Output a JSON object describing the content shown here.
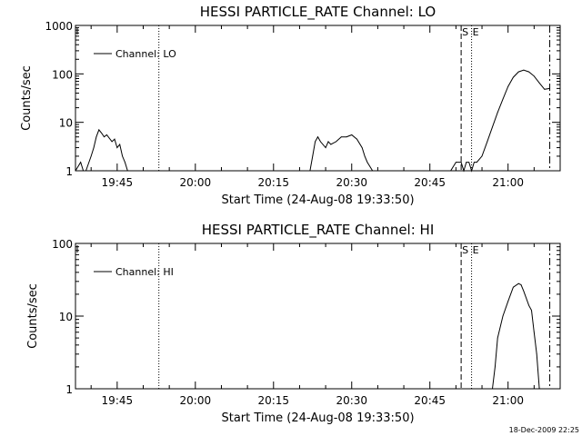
{
  "footer_timestamp": "18-Dec-2009 22:25",
  "chart_data": [
    {
      "type": "line",
      "title": "HESSI PARTICLE_RATE Channel: LO",
      "xlabel": "Start Time (24-Aug-08 19:33:50)",
      "ylabel": "Counts/sec",
      "yscale": "log",
      "ylim": [
        1,
        1000
      ],
      "xlim": [
        "19:37",
        "21:10"
      ],
      "x_ticks": [
        "19:45",
        "20:00",
        "20:15",
        "20:30",
        "20:45",
        "21:00"
      ],
      "y_ticks": [
        "1",
        "10",
        "100",
        "1000"
      ],
      "legend": {
        "label": "Channel: LO",
        "placement": "top-left"
      },
      "markers": [
        {
          "time": "19:53",
          "style": "dotted",
          "label": ""
        },
        {
          "time": "20:51",
          "style": "dashed",
          "label": "S"
        },
        {
          "time": "20:53",
          "style": "dotted",
          "label": "E"
        },
        {
          "time": "21:08",
          "style": "dashdot",
          "label": ""
        }
      ],
      "series": [
        {
          "name": "Channel: LO",
          "segments": [
            [
              [
                "19:37",
                1
              ],
              [
                "19:38",
                1.5
              ],
              [
                "19:38.5",
                1
              ],
              [
                "19:39",
                1
              ],
              [
                "19:40",
                2
              ],
              [
                "19:40.5",
                3
              ],
              [
                "19:41",
                5
              ],
              [
                "19:41.5",
                7
              ],
              [
                "19:42",
                6
              ],
              [
                "19:42.5",
                5
              ],
              [
                "19:43",
                5.5
              ],
              [
                "19:44",
                4
              ],
              [
                "19:44.5",
                4.5
              ],
              [
                "19:45",
                3
              ],
              [
                "19:45.5",
                3.5
              ],
              [
                "19:46",
                2
              ],
              [
                "19:46.5",
                1.5
              ],
              [
                "19:47",
                1
              ]
            ],
            [
              [
                "20:22",
                1
              ],
              [
                "20:22.5",
                2
              ],
              [
                "20:23",
                4
              ],
              [
                "20:23.5",
                5
              ],
              [
                "20:24",
                4
              ],
              [
                "20:25",
                3
              ],
              [
                "20:25.5",
                4
              ],
              [
                "20:26",
                3.5
              ],
              [
                "20:27",
                4
              ],
              [
                "20:28",
                5
              ],
              [
                "20:29",
                5
              ],
              [
                "20:30",
                5.5
              ],
              [
                "20:31",
                4.5
              ],
              [
                "20:32",
                3
              ],
              [
                "20:32.5",
                2
              ],
              [
                "20:33",
                1.5
              ],
              [
                "20:34",
                1
              ]
            ],
            [
              [
                "20:49",
                1
              ],
              [
                "20:50",
                1.5
              ],
              [
                "20:51",
                1.5
              ],
              [
                "20:51.5",
                1
              ],
              [
                "20:52",
                1.5
              ],
              [
                "20:52.5",
                1.5
              ],
              [
                "20:53",
                1
              ],
              [
                "20:53.5",
                1.5
              ],
              [
                "20:54",
                1.5
              ],
              [
                "20:55",
                2
              ],
              [
                "20:56",
                4
              ],
              [
                "20:57",
                8
              ],
              [
                "20:58",
                16
              ],
              [
                "20:59",
                30
              ],
              [
                "21:00",
                55
              ],
              [
                "21:01",
                85
              ],
              [
                "21:02",
                110
              ],
              [
                "21:03",
                120
              ],
              [
                "21:04",
                110
              ],
              [
                "21:05",
                90
              ],
              [
                "21:06",
                65
              ],
              [
                "21:07",
                48
              ],
              [
                "21:08",
                50
              ]
            ]
          ]
        }
      ]
    },
    {
      "type": "line",
      "title": "HESSI PARTICLE_RATE Channel: HI",
      "xlabel": "Start Time (24-Aug-08 19:33:50)",
      "ylabel": "Counts/sec",
      "yscale": "log",
      "ylim": [
        1,
        100
      ],
      "xlim": [
        "19:37",
        "21:10"
      ],
      "x_ticks": [
        "19:45",
        "20:00",
        "20:15",
        "20:30",
        "20:45",
        "21:00"
      ],
      "y_ticks": [
        "1",
        "10",
        "100"
      ],
      "legend": {
        "label": "Channel: HI",
        "placement": "top-left"
      },
      "markers": [
        {
          "time": "19:53",
          "style": "dotted",
          "label": ""
        },
        {
          "time": "20:51",
          "style": "dashed",
          "label": "S"
        },
        {
          "time": "20:53",
          "style": "dotted",
          "label": "E"
        },
        {
          "time": "21:08",
          "style": "dashdot",
          "label": ""
        }
      ],
      "series": [
        {
          "name": "Channel: HI",
          "segments": [
            [
              [
                "20:57",
                1
              ],
              [
                "20:57.5",
                2
              ],
              [
                "20:58",
                5
              ],
              [
                "20:59",
                10
              ],
              [
                "21:00",
                16
              ],
              [
                "21:01",
                25
              ],
              [
                "21:02",
                28
              ],
              [
                "21:02.5",
                27
              ],
              [
                "21:03",
                22
              ],
              [
                "21:04",
                14
              ],
              [
                "21:04.5",
                12
              ],
              [
                "21:05",
                6
              ],
              [
                "21:05.5",
                3
              ],
              [
                "21:06",
                1
              ]
            ]
          ]
        }
      ]
    }
  ]
}
